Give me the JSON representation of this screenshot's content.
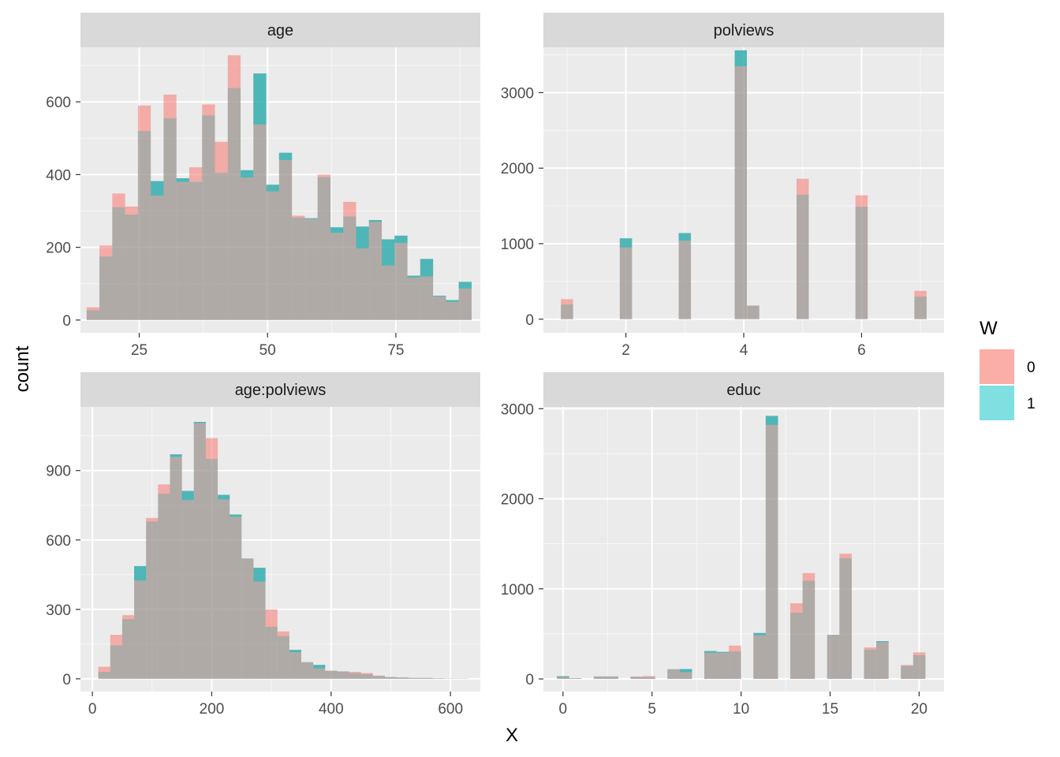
{
  "figure": {
    "xlabel": "X",
    "ylabel": "count"
  },
  "legend": {
    "title": "W",
    "items": [
      {
        "label": "0",
        "color": "#F8766D"
      },
      {
        "label": "1",
        "color": "#00BFC4"
      }
    ]
  },
  "chart_data": [
    {
      "type": "bar",
      "title": "age",
      "stacked": true,
      "x_domain": [
        13.55,
        91.45
      ],
      "ylim": [
        -35,
        750
      ],
      "xticks": [
        25,
        50,
        75
      ],
      "yticks": [
        0,
        200,
        400,
        600
      ],
      "bin_width": 2.5,
      "bins": [
        {
          "x": 16.0,
          "w1": 27,
          "w0": 8
        },
        {
          "x": 18.5,
          "w1": 175,
          "w0": 30
        },
        {
          "x": 21.0,
          "w1": 310,
          "w0": 38
        },
        {
          "x": 23.5,
          "w1": 290,
          "w0": 22
        },
        {
          "x": 26.0,
          "w1": 520,
          "w0": 70
        },
        {
          "x": 28.5,
          "w1": 382,
          "w0": -40
        },
        {
          "x": 31.0,
          "w1": 555,
          "w0": 65
        },
        {
          "x": 33.5,
          "w1": 390,
          "w0": -10
        },
        {
          "x": 36.0,
          "w1": 380,
          "w0": 40
        },
        {
          "x": 38.5,
          "w1": 563,
          "w0": 30
        },
        {
          "x": 41.0,
          "w1": 405,
          "w0": 85
        },
        {
          "x": 43.5,
          "w1": 638,
          "w0": 90
        },
        {
          "x": 46.0,
          "w1": 412,
          "w0": -20
        },
        {
          "x": 48.5,
          "w1": 678,
          "w0": -140
        },
        {
          "x": 51.0,
          "w1": 372,
          "w0": -18
        },
        {
          "x": 53.5,
          "w1": 460,
          "w0": -20
        },
        {
          "x": 56.0,
          "w1": 282,
          "w0": 5
        },
        {
          "x": 58.5,
          "w1": 280,
          "w0": -2
        },
        {
          "x": 61.0,
          "w1": 393,
          "w0": 7
        },
        {
          "x": 63.5,
          "w1": 255,
          "w0": -15
        },
        {
          "x": 66.0,
          "w1": 285,
          "w0": 40
        },
        {
          "x": 68.5,
          "w1": 257,
          "w0": -60
        },
        {
          "x": 71.0,
          "w1": 275,
          "w0": -5
        },
        {
          "x": 73.5,
          "w1": 222,
          "w0": -72
        },
        {
          "x": 76.0,
          "w1": 232,
          "w0": -20
        },
        {
          "x": 78.5,
          "w1": 122,
          "w0": -5
        },
        {
          "x": 81.0,
          "w1": 168,
          "w0": -48
        },
        {
          "x": 83.5,
          "w1": 67,
          "w0": -2
        },
        {
          "x": 86.0,
          "w1": 55,
          "w0": -5
        },
        {
          "x": 88.5,
          "w1": 105,
          "w0": -18
        }
      ]
    },
    {
      "type": "bar",
      "title": "polviews",
      "stacked": true,
      "x_domain": [
        0.6,
        7.4
      ],
      "ylim": [
        -180,
        3600
      ],
      "xticks": [
        2,
        4,
        6
      ],
      "yticks": [
        0,
        1000,
        2000,
        3000
      ],
      "bin_width": 0.207,
      "bins": [
        {
          "x": 1.0,
          "w1": 195,
          "w0": 70
        },
        {
          "x": 2.0,
          "w1": 1070,
          "w0": -120
        },
        {
          "x": 3.0,
          "w1": 1140,
          "w0": -100
        },
        {
          "x": 3.95,
          "w1": 3560,
          "w0": -210
        },
        {
          "x": 4.16,
          "w1": 180,
          "w0": 0
        },
        {
          "x": 5.0,
          "w1": 1650,
          "w0": 210
        },
        {
          "x": 6.0,
          "w1": 1490,
          "w0": 150
        },
        {
          "x": 7.0,
          "w1": 300,
          "w0": 75
        }
      ]
    },
    {
      "type": "bar",
      "title": "age:polviews",
      "stacked": true,
      "x_domain": [
        -20,
        650
      ],
      "ylim": [
        -55,
        1175
      ],
      "xticks": [
        0,
        200,
        400,
        600
      ],
      "yticks": [
        0,
        300,
        600,
        900
      ],
      "bin_width": 20,
      "bins": [
        {
          "x": 20,
          "w1": 30,
          "w0": 22
        },
        {
          "x": 40,
          "w1": 145,
          "w0": 45
        },
        {
          "x": 60,
          "w1": 258,
          "w0": 17
        },
        {
          "x": 80,
          "w1": 487,
          "w0": -62
        },
        {
          "x": 100,
          "w1": 680,
          "w0": 15
        },
        {
          "x": 120,
          "w1": 800,
          "w0": 40
        },
        {
          "x": 140,
          "w1": 970,
          "w0": -10
        },
        {
          "x": 160,
          "w1": 812,
          "w0": -40
        },
        {
          "x": 180,
          "w1": 1110,
          "w0": -5
        },
        {
          "x": 200,
          "w1": 950,
          "w0": 90
        },
        {
          "x": 220,
          "w1": 795,
          "w0": -20
        },
        {
          "x": 240,
          "w1": 710,
          "w0": -10
        },
        {
          "x": 260,
          "w1": 520,
          "w0": 0
        },
        {
          "x": 280,
          "w1": 480,
          "w0": -60
        },
        {
          "x": 300,
          "w1": 225,
          "w0": 75
        },
        {
          "x": 320,
          "w1": 185,
          "w0": 20
        },
        {
          "x": 340,
          "w1": 125,
          "w0": -10
        },
        {
          "x": 360,
          "w1": 72,
          "w0": 0
        },
        {
          "x": 380,
          "w1": 60,
          "w0": -15
        },
        {
          "x": 400,
          "w1": 35,
          "w0": 0
        },
        {
          "x": 420,
          "w1": 32,
          "w0": 0
        },
        {
          "x": 440,
          "w1": 25,
          "w0": 5
        },
        {
          "x": 460,
          "w1": 20,
          "w0": 5
        },
        {
          "x": 480,
          "w1": 12,
          "w0": 2
        },
        {
          "x": 500,
          "w1": 8,
          "w0": 0
        },
        {
          "x": 520,
          "w1": 6,
          "w0": 0
        },
        {
          "x": 540,
          "w1": 4,
          "w0": 0
        },
        {
          "x": 560,
          "w1": 4,
          "w0": 0
        },
        {
          "x": 580,
          "w1": 2,
          "w0": 0
        },
        {
          "x": 600,
          "w1": 1,
          "w0": 0
        },
        {
          "x": 620,
          "w1": 1,
          "w0": 0
        }
      ]
    },
    {
      "type": "bar",
      "title": "educ",
      "stacked": true,
      "x_domain": [
        -1.1,
        21.4
      ],
      "ylim": [
        -140,
        3020
      ],
      "xticks": [
        0,
        5,
        10,
        15,
        20
      ],
      "yticks": [
        0,
        1000,
        2000,
        3000
      ],
      "bin_width": 0.69,
      "bins": [
        {
          "x": 0.0,
          "w1": 30,
          "w0": -10
        },
        {
          "x": 0.69,
          "w1": 8,
          "w0": 0
        },
        {
          "x": 2.07,
          "w1": 28,
          "w0": 0
        },
        {
          "x": 2.76,
          "w1": 28,
          "w0": 0
        },
        {
          "x": 4.14,
          "w1": 22,
          "w0": 5
        },
        {
          "x": 4.83,
          "w1": 22,
          "w0": 10
        },
        {
          "x": 6.21,
          "w1": 108,
          "w0": 0
        },
        {
          "x": 6.9,
          "w1": 110,
          "w0": -35
        },
        {
          "x": 8.28,
          "w1": 310,
          "w0": -20
        },
        {
          "x": 8.97,
          "w1": 300,
          "w0": -10
        },
        {
          "x": 9.66,
          "w1": 305,
          "w0": 65
        },
        {
          "x": 11.04,
          "w1": 510,
          "w0": -25
        },
        {
          "x": 11.73,
          "w1": 2920,
          "w0": -100
        },
        {
          "x": 13.11,
          "w1": 735,
          "w0": 105
        },
        {
          "x": 13.8,
          "w1": 1090,
          "w0": 85
        },
        {
          "x": 15.18,
          "w1": 490,
          "w0": 0
        },
        {
          "x": 15.87,
          "w1": 1340,
          "w0": 50
        },
        {
          "x": 17.25,
          "w1": 325,
          "w0": 25
        },
        {
          "x": 17.94,
          "w1": 420,
          "w0": -10
        },
        {
          "x": 19.32,
          "w1": 145,
          "w0": 10
        },
        {
          "x": 20.01,
          "w1": 265,
          "w0": 30
        }
      ]
    }
  ]
}
